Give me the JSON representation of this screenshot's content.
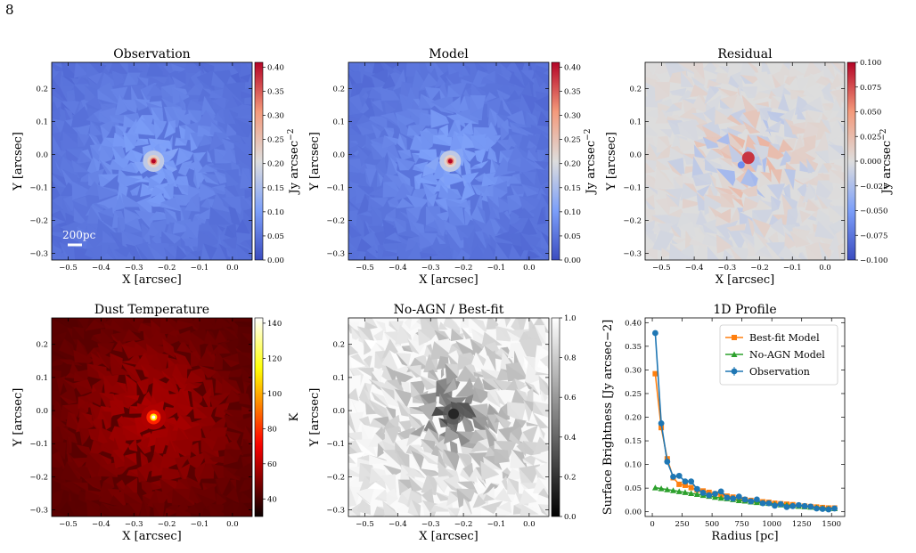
{
  "page_number": "8",
  "colors": {
    "observation": "#1f77b4",
    "best_fit": "#ff7f0e",
    "no_agn": "#2ca02c"
  },
  "chart_data": [
    {
      "type": "heatmap",
      "title": "Observation",
      "xlabel": "X [arcsec]",
      "ylabel": "Y [arcsec]",
      "colormap": "coolwarm",
      "colorbar_label": "Jy arcsec−2",
      "xlim": [
        -0.55,
        0.06
      ],
      "ylim": [
        -0.32,
        0.28
      ],
      "xticks": [
        -0.5,
        -0.4,
        -0.3,
        -0.2,
        -0.1,
        0.0
      ],
      "xtick_labels": [
        "−0.5",
        "−0.4",
        "−0.3",
        "−0.2",
        "−0.1",
        "0.0"
      ],
      "yticks": [
        -0.3,
        -0.2,
        -0.1,
        0.0,
        0.1,
        0.2
      ],
      "ytick_labels": [
        "−0.3",
        "−0.2",
        "−0.1",
        "0.0",
        "0.1",
        "0.2"
      ],
      "clim": [
        0,
        0.41
      ],
      "cbar_ticks": [
        0,
        0.05,
        0.1,
        0.15,
        0.2,
        0.25,
        0.3,
        0.35,
        0.4
      ],
      "cbar_tick_labels": [
        "0.00",
        "0.05",
        "0.10",
        "0.15",
        "0.20",
        "0.25",
        "0.30",
        "0.35",
        "0.40"
      ],
      "peak": [
        -0.24,
        -0.02
      ],
      "scalebar_label": "200pc"
    },
    {
      "type": "heatmap",
      "title": "Model",
      "xlabel": "X [arcsec]",
      "ylabel": "Y [arcsec]",
      "colormap": "coolwarm",
      "colorbar_label": "Jy arcsec−2",
      "xlim": [
        -0.55,
        0.06
      ],
      "ylim": [
        -0.32,
        0.28
      ],
      "xticks": [
        -0.5,
        -0.4,
        -0.3,
        -0.2,
        -0.1,
        0.0
      ],
      "xtick_labels": [
        "−0.5",
        "−0.4",
        "−0.3",
        "−0.2",
        "−0.1",
        "0.0"
      ],
      "yticks": [
        -0.3,
        -0.2,
        -0.1,
        0.0,
        0.1,
        0.2
      ],
      "ytick_labels": [
        "−0.3",
        "−0.2",
        "−0.1",
        "0.0",
        "0.1",
        "0.2"
      ],
      "clim": [
        0,
        0.41
      ],
      "cbar_ticks": [
        0,
        0.05,
        0.1,
        0.15,
        0.2,
        0.25,
        0.3,
        0.35,
        0.4
      ],
      "cbar_tick_labels": [
        "0.00",
        "0.05",
        "0.10",
        "0.15",
        "0.20",
        "0.25",
        "0.30",
        "0.35",
        "0.40"
      ],
      "peak": [
        -0.24,
        -0.02
      ]
    },
    {
      "type": "heatmap",
      "title": "Residual",
      "xlabel": "X [arcsec]",
      "ylabel": "Y [arcsec]",
      "colormap": "coolwarm",
      "colorbar_label": "Jy arcsec−2",
      "xlim": [
        -0.55,
        0.06
      ],
      "ylim": [
        -0.32,
        0.28
      ],
      "xticks": [
        -0.5,
        -0.4,
        -0.3,
        -0.2,
        -0.1,
        0.0
      ],
      "xtick_labels": [
        "−0.5",
        "−0.4",
        "−0.3",
        "−0.2",
        "−0.1",
        "0.0"
      ],
      "yticks": [
        -0.3,
        -0.2,
        -0.1,
        0.0,
        0.1,
        0.2
      ],
      "ytick_labels": [
        "−0.3",
        "−0.2",
        "−0.1",
        "0.0",
        "0.1",
        "0.2"
      ],
      "clim": [
        -0.1,
        0.1
      ],
      "cbar_ticks": [
        -0.1,
        -0.075,
        -0.05,
        -0.025,
        0,
        0.025,
        0.05,
        0.075,
        0.1
      ],
      "cbar_tick_labels": [
        "−0.100",
        "−0.075",
        "−0.050",
        "−0.025",
        "0.000",
        "0.025",
        "0.050",
        "0.075",
        "0.100"
      ],
      "peak": [
        -0.24,
        -0.01
      ]
    },
    {
      "type": "heatmap",
      "title": "Dust Temperature",
      "xlabel": "X [arcsec]",
      "ylabel": "Y [arcsec]",
      "colormap": "hot",
      "colorbar_label": "K",
      "xlim": [
        -0.55,
        0.06
      ],
      "ylim": [
        -0.32,
        0.28
      ],
      "xticks": [
        -0.5,
        -0.4,
        -0.3,
        -0.2,
        -0.1,
        0.0
      ],
      "xtick_labels": [
        "−0.5",
        "−0.4",
        "−0.3",
        "−0.2",
        "−0.1",
        "0.0"
      ],
      "yticks": [
        -0.3,
        -0.2,
        -0.1,
        0.0,
        0.1,
        0.2
      ],
      "ytick_labels": [
        "−0.3",
        "−0.2",
        "−0.1",
        "0.0",
        "0.1",
        "0.2"
      ],
      "clim": [
        30,
        143
      ],
      "cbar_ticks": [
        40,
        60,
        80,
        100,
        120,
        140
      ],
      "cbar_tick_labels": [
        "40",
        "60",
        "80",
        "100",
        "120",
        "140"
      ],
      "peak": [
        -0.24,
        -0.02
      ]
    },
    {
      "type": "heatmap",
      "title": "No-AGN / Best-fit",
      "xlabel": "X [arcsec]",
      "ylabel": "Y [arcsec]",
      "colormap": "gray",
      "xlim": [
        -0.55,
        0.06
      ],
      "ylim": [
        -0.32,
        0.28
      ],
      "xticks": [
        -0.5,
        -0.4,
        -0.3,
        -0.2,
        -0.1,
        0.0
      ],
      "xtick_labels": [
        "−0.5",
        "−0.4",
        "−0.3",
        "−0.2",
        "−0.1",
        "0.0"
      ],
      "yticks": [
        -0.3,
        -0.2,
        -0.1,
        0.0,
        0.1,
        0.2
      ],
      "ytick_labels": [
        "−0.3",
        "−0.2",
        "−0.1",
        "0.0",
        "0.1",
        "0.2"
      ],
      "clim": [
        0,
        1
      ],
      "cbar_ticks": [
        0,
        0.2,
        0.4,
        0.6,
        0.8,
        1.0
      ],
      "cbar_tick_labels": [
        "0.0",
        "0.2",
        "0.4",
        "0.6",
        "0.8",
        "1.0"
      ],
      "peak": [
        -0.23,
        -0.01
      ]
    },
    {
      "type": "line",
      "title": "1D Profile",
      "xlabel": "Radius [pc]",
      "ylabel": "Surface Brightness [Jy arcsec−2]",
      "xlim": [
        -60,
        1610
      ],
      "ylim": [
        -0.01,
        0.41
      ],
      "xticks": [
        0,
        250,
        500,
        750,
        1000,
        1250,
        1500
      ],
      "xtick_labels": [
        "0",
        "250",
        "500",
        "750",
        "1000",
        "1250",
        "1500"
      ],
      "yticks": [
        0,
        0.05,
        0.1,
        0.15,
        0.2,
        0.25,
        0.3,
        0.35,
        0.4
      ],
      "ytick_labels": [
        "0.00",
        "0.05",
        "0.10",
        "0.15",
        "0.20",
        "0.25",
        "0.30",
        "0.35",
        "0.40"
      ],
      "legend_position": "top-right",
      "x": [
        25,
        75,
        125,
        175,
        225,
        275,
        325,
        375,
        425,
        475,
        525,
        575,
        625,
        675,
        725,
        775,
        825,
        875,
        925,
        975,
        1025,
        1075,
        1125,
        1175,
        1225,
        1275,
        1325,
        1375,
        1425,
        1475,
        1525
      ],
      "series": [
        {
          "name": "Best-fit Model",
          "color": "#ff7f0e",
          "marker": "square",
          "values": [
            0.292,
            0.178,
            0.112,
            0.072,
            0.058,
            0.056,
            0.051,
            0.046,
            0.044,
            0.041,
            0.038,
            0.036,
            0.033,
            0.031,
            0.028,
            0.026,
            0.024,
            0.022,
            0.021,
            0.02,
            0.018,
            0.017,
            0.016,
            0.015,
            0.013,
            0.012,
            0.011,
            0.01,
            0.009,
            0.008,
            0.008
          ]
        },
        {
          "name": "No-AGN Model",
          "color": "#2ca02c",
          "marker": "triangle",
          "values": [
            0.051,
            0.049,
            0.047,
            0.045,
            0.043,
            0.041,
            0.039,
            0.037,
            0.035,
            0.033,
            0.031,
            0.029,
            0.028,
            0.026,
            0.024,
            0.023,
            0.021,
            0.02,
            0.019,
            0.018,
            0.016,
            0.015,
            0.014,
            0.013,
            0.012,
            0.011,
            0.01,
            0.009,
            0.008,
            0.007,
            0.007
          ]
        },
        {
          "name": "Observation",
          "color": "#1f77b4",
          "marker": "circle",
          "errorbars": true,
          "values": [
            0.378,
            0.187,
            0.106,
            0.074,
            0.076,
            0.064,
            0.064,
            0.048,
            0.04,
            0.035,
            0.038,
            0.043,
            0.03,
            0.028,
            0.032,
            0.026,
            0.022,
            0.026,
            0.018,
            0.018,
            0.013,
            0.016,
            0.01,
            0.012,
            0.014,
            0.012,
            0.011,
            0.007,
            0.006,
            0.005,
            0.007
          ]
        }
      ]
    }
  ]
}
